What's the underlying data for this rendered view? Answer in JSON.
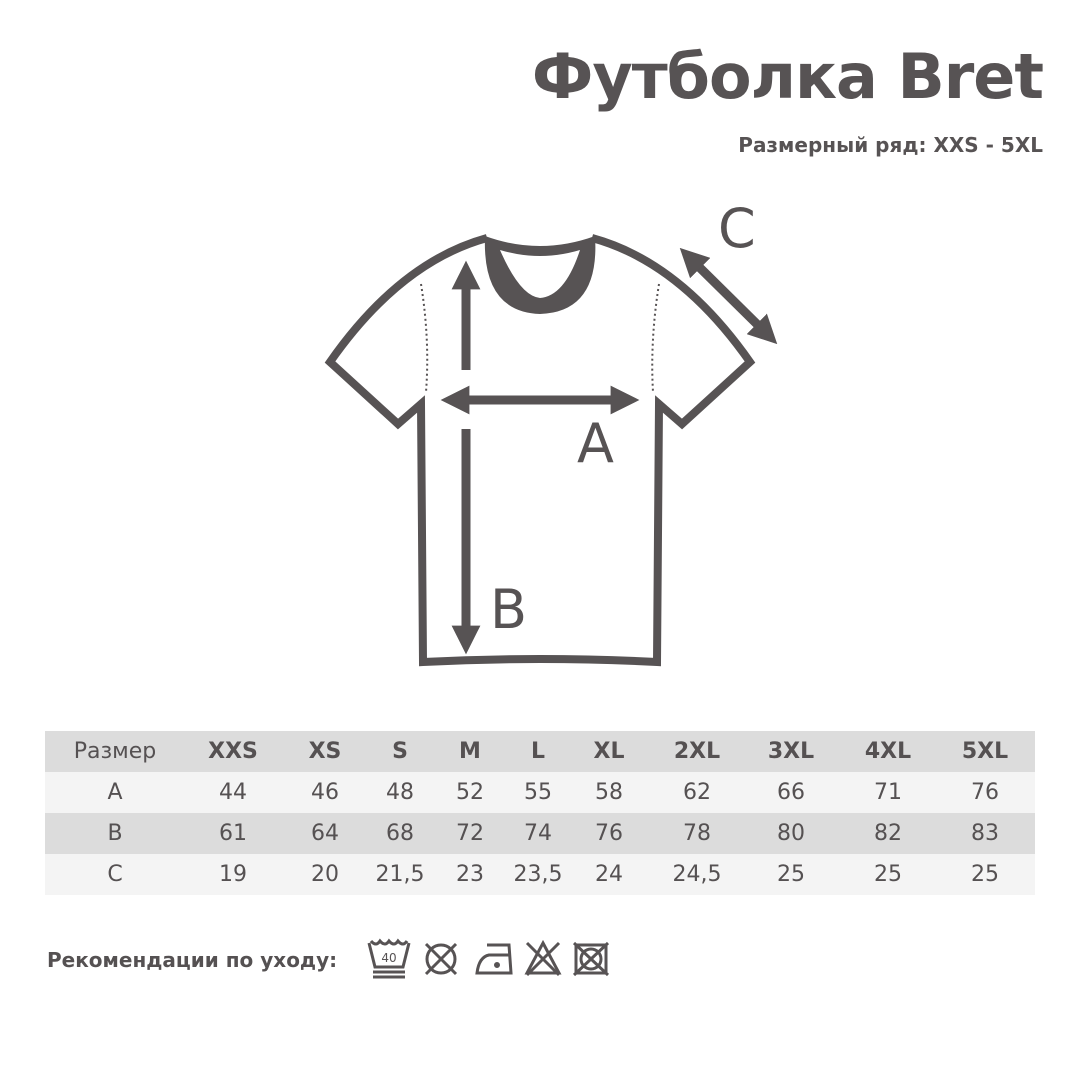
{
  "title": "Футболка Bret",
  "subtitle": "Размерный ряд: XXS - 5XL",
  "diagram": {
    "label_a": "A",
    "label_b": "B",
    "label_c": "C"
  },
  "table": {
    "header": [
      "Размер",
      "XXS",
      "XS",
      "S",
      "M",
      "L",
      "XL",
      "2XL",
      "3XL",
      "4XL",
      "5XL"
    ],
    "rows": [
      [
        "A",
        "44",
        "46",
        "48",
        "52",
        "55",
        "58",
        "62",
        "66",
        "71",
        "76"
      ],
      [
        "B",
        "61",
        "64",
        "68",
        "72",
        "74",
        "76",
        "78",
        "80",
        "82",
        "83"
      ],
      [
        "C",
        "19",
        "20",
        "21,5",
        "23",
        "23,5",
        "24",
        "24,5",
        "25",
        "25",
        "25"
      ]
    ]
  },
  "care": {
    "label": "Рекомендации по уходу:",
    "wash_temp": "40",
    "icons": [
      "wash-40-gentle-icon",
      "no-dry-clean-icon",
      "iron-low-icon",
      "no-bleach-icon",
      "no-tumble-dry-icon"
    ]
  },
  "colors": {
    "ink": "#555152",
    "row_dark": "#dcdcdc",
    "row_light": "#f4f4f4"
  }
}
